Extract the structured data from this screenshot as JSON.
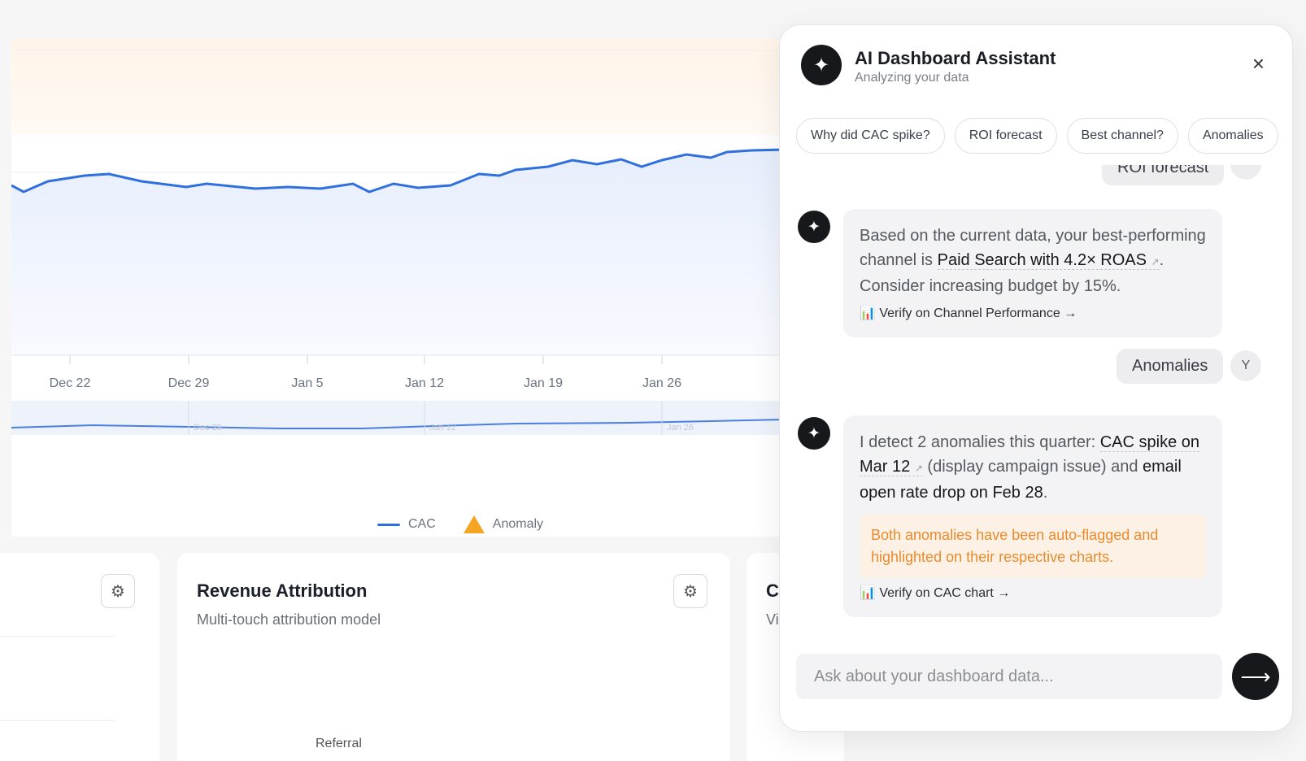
{
  "chart": {
    "x_ticks": [
      "Dec 22",
      "Dec 29",
      "Jan 5",
      "Jan 12",
      "Jan 19",
      "Jan 26"
    ],
    "minimap_labels": [
      "Dec 29",
      "Jan 12",
      "Jan 26"
    ],
    "legend": {
      "series_label": "CAC",
      "anomaly_label": "Anomaly"
    },
    "colors": {
      "line": "#2f6fde",
      "anomaly": "#f5a524"
    }
  },
  "cards": {
    "revenue_attribution": {
      "title": "Revenue Attribution",
      "subtitle": "Multi-touch attribution model",
      "referral_label": "Referral"
    },
    "third": {
      "title_fragment": "C",
      "subtitle_fragment": "Vi"
    }
  },
  "assistant": {
    "title": "AI Dashboard Assistant",
    "subtitle": "Analyzing your data",
    "close_icon": "×",
    "chips": [
      "Why did CAC spike?",
      "ROI forecast",
      "Best channel?",
      "Anomalies"
    ],
    "messages": {
      "user_1": "ROI forecast",
      "ai_1": {
        "text_before": "Based on the current data, your best-performing channel is ",
        "highlight": "Paid Search with 4.2× ROAS",
        "text_after": ". Consider increasing budget by 15%.",
        "verify": "📊 Verify on Channel Performance →"
      },
      "user_2": "Anomalies",
      "user_avatar": "Y",
      "ai_2": {
        "text_before": "I detect 2 anomalies this quarter: ",
        "highlight_1": "CAC spike on Mar 12",
        "text_mid": " (display campaign issue) and ",
        "highlight_2": "email open rate drop on Feb 28",
        "text_after": ".",
        "callout": "Both anomalies have been auto-flagged and highlighted on their respective charts.",
        "verify": "📊 Verify on CAC chart →"
      }
    },
    "input_placeholder": "Ask about your dashboard data...",
    "send_icon": "⟶"
  }
}
